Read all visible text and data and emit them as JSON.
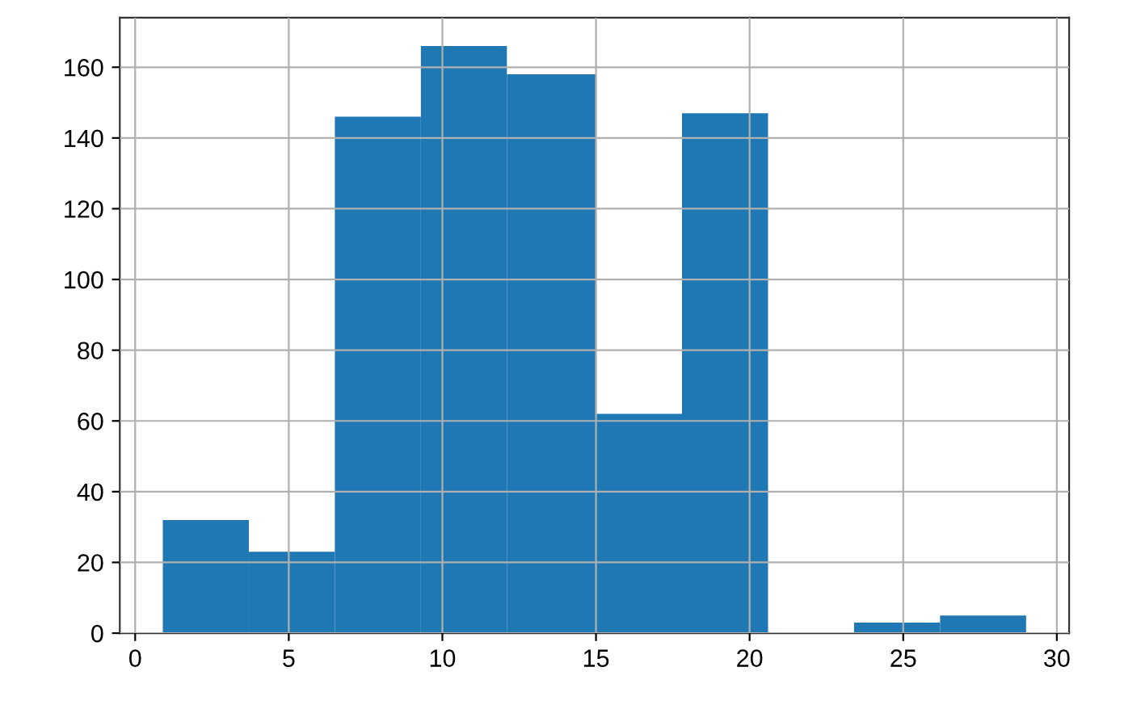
{
  "chart_data": {
    "type": "histogram",
    "bins": [
      0.9,
      3.7,
      6.5,
      9.3,
      12.1,
      15.0,
      17.8,
      20.6,
      23.4,
      26.2,
      29.0
    ],
    "values": [
      32,
      23,
      146,
      166,
      158,
      62,
      147,
      0,
      3,
      5
    ],
    "color": "#1f77b4",
    "xlim": [
      -0.5,
      30.4
    ],
    "ylim": [
      0,
      174
    ],
    "xticks": [
      0,
      5,
      10,
      15,
      20,
      25,
      30
    ],
    "yticks": [
      0,
      20,
      40,
      60,
      80,
      100,
      120,
      140,
      160
    ],
    "grid": true
  }
}
